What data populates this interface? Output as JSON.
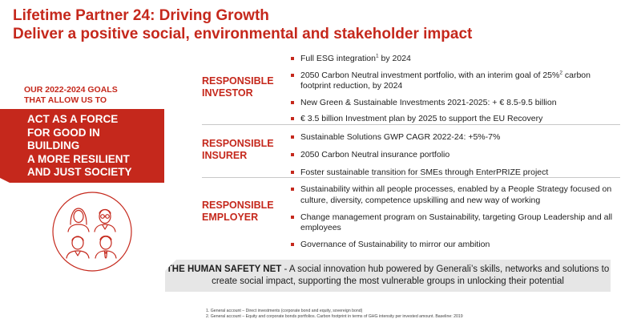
{
  "title": {
    "line1": "Lifetime Partner 24: Driving Growth",
    "line2": "Deliver a positive social, environmental and stakeholder impact"
  },
  "goals": {
    "line1": "OUR 2022-2024 GOALS",
    "line2": "THAT ALLOW US TO"
  },
  "force_banner": {
    "lines": [
      "ACT AS A FORCE",
      "FOR GOOD IN",
      "BUILDING",
      "A MORE RESILIENT",
      "AND JUST SOCIETY"
    ]
  },
  "pillars": [
    {
      "label_line1": "RESPONSIBLE",
      "label_line2": "INVESTOR",
      "bullets": [
        {
          "text": "Full ESG integration",
          "sup": "1",
          "after": " by 2024"
        },
        {
          "text": "2050 Carbon Neutral investment portfolio, with an interim goal of 25%",
          "sup": "2",
          "after": " carbon footprint reduction, by 2024"
        },
        {
          "text": "New Green & Sustainable Investments 2021-2025: + € 8.5-9.5 billion",
          "sup": "",
          "after": ""
        },
        {
          "text": "€ 3.5 billion Investment plan by 2025 to support the EU Recovery",
          "sup": "",
          "after": ""
        }
      ]
    },
    {
      "label_line1": "RESPONSIBLE",
      "label_line2": "INSURER",
      "bullets": [
        {
          "text": "Sustainable Solutions GWP CAGR 2022-24:  +5%-7%",
          "sup": "",
          "after": ""
        },
        {
          "text": "2050 Carbon Neutral insurance portfolio",
          "sup": "",
          "after": ""
        },
        {
          "text": "Foster sustainable transition for SMEs through EnterPRIZE project",
          "sup": "",
          "after": ""
        }
      ]
    },
    {
      "label_line1": "RESPONSIBLE",
      "label_line2": "EMPLOYER",
      "bullets": [
        {
          "text": "Sustainability within all people processes, enabled by a People Strategy focused on culture, diversity, competence upskilling and new way of working",
          "sup": "",
          "after": ""
        },
        {
          "text": "Change management program on Sustainability, targeting Group Leadership and all employees",
          "sup": "",
          "after": ""
        },
        {
          "text": "Governance of Sustainability to mirror our ambition",
          "sup": "",
          "after": ""
        }
      ]
    }
  ],
  "safety_net": {
    "bold": "THE HUMAN SAFETY NET",
    "text": " - A social innovation hub powered by Generali’s skills, networks and solutions to create social impact, supporting the most vulnerable groups in unlocking their potential"
  },
  "footnotes": [
    "1.   General account – Direct investments (corporate bond and equity, sovereign bond)",
    "2.   General account – Equity and corporate bonds portfolios. Carbon footprint in terms of GHG intensity per invested amount. Baseline: 2019"
  ],
  "icons": {
    "people": "people-group-icon"
  },
  "colors": {
    "accent": "#c5281c",
    "panel": "#e6e6e6"
  }
}
